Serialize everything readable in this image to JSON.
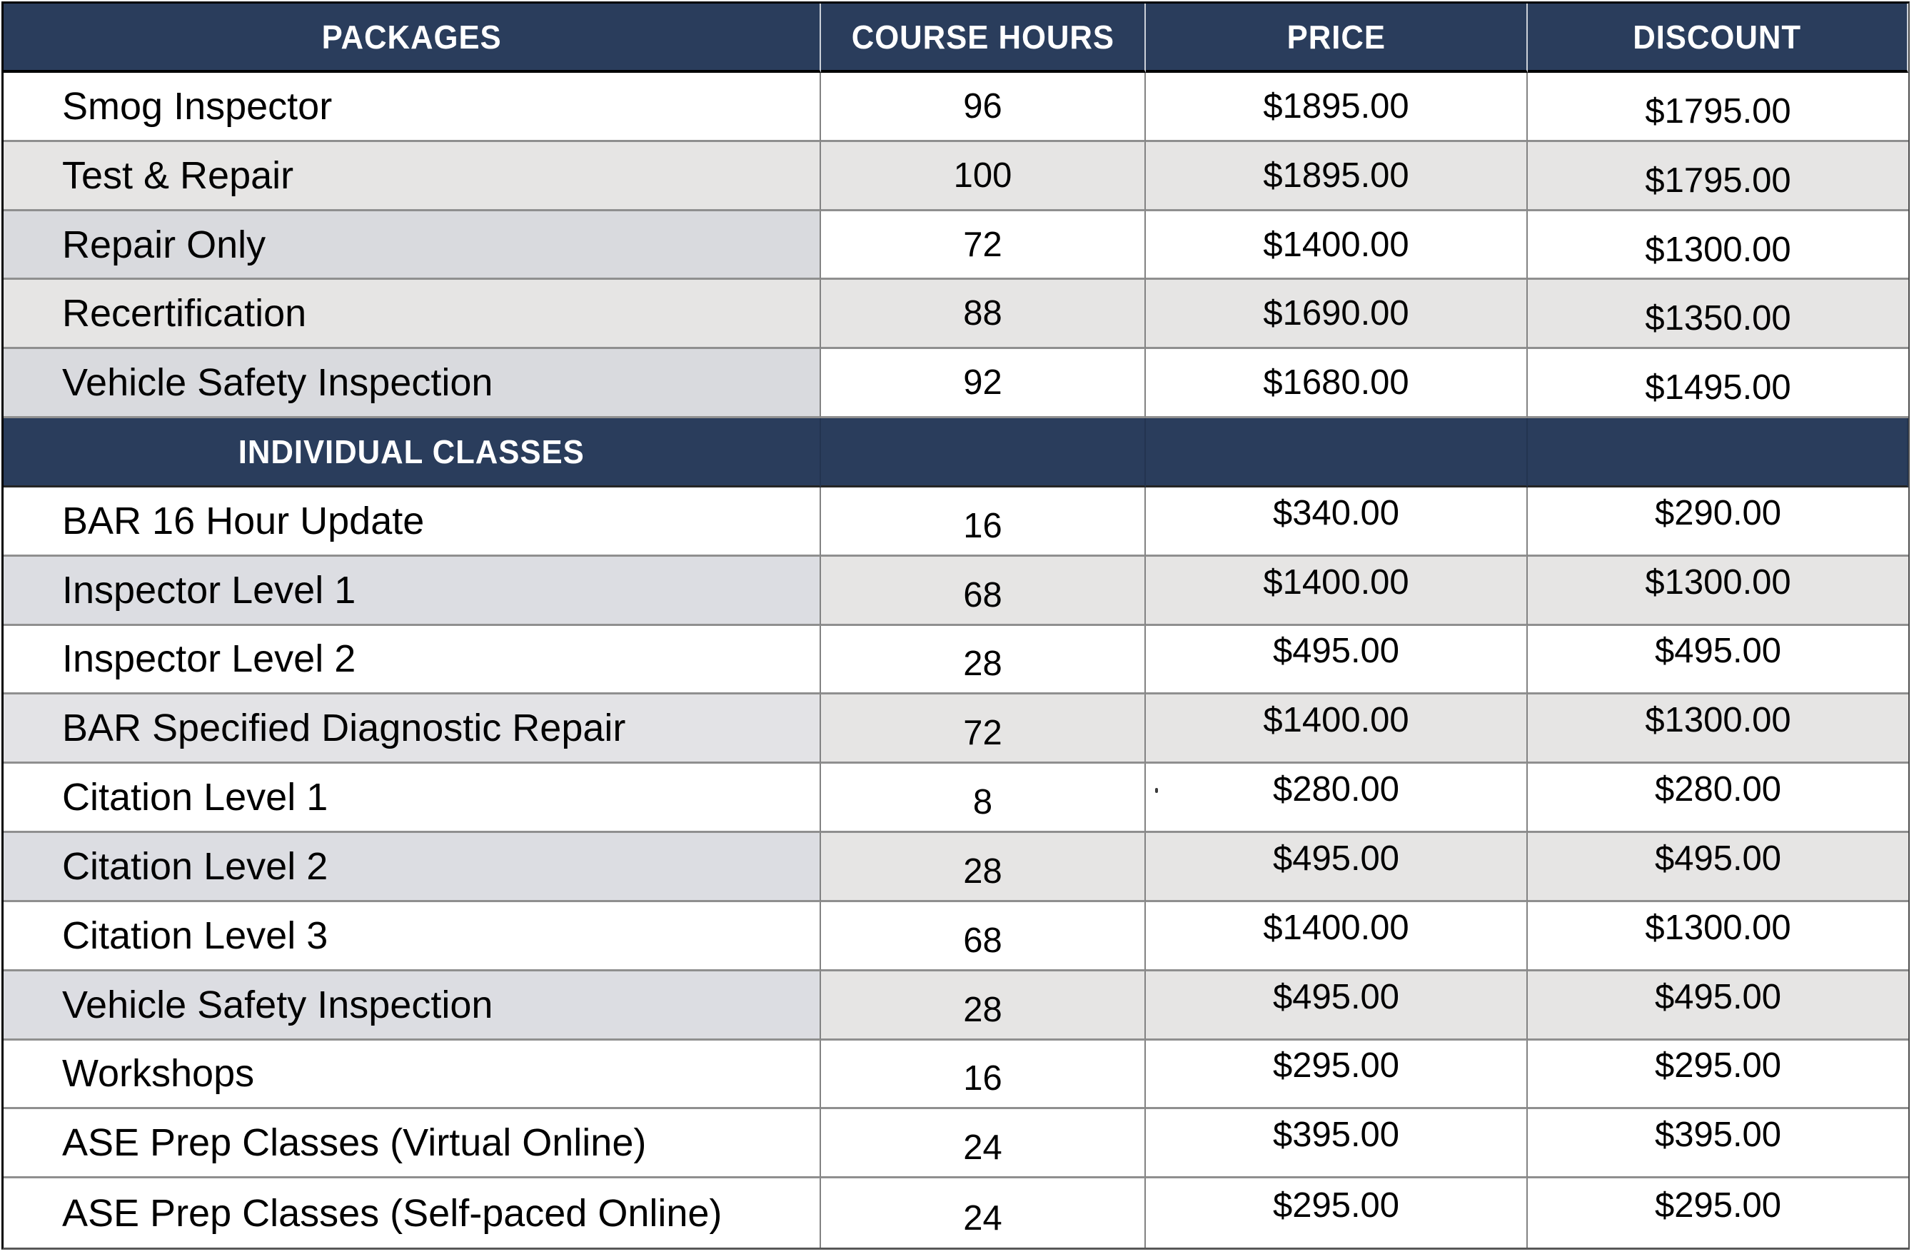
{
  "palette": {
    "header_bg": "#2a3d5c",
    "header_text": "#ffffff",
    "text": "#000000",
    "row_white": "#ffffff",
    "row_gray": "#e6e5e4",
    "row_blue": "#d9dade",
    "row_blue2": "#dcdde2",
    "row_blue3": "#e3e3e6",
    "grid_line": "#8f8f8f",
    "col_line": "#828282",
    "outer_border": "#000000"
  },
  "columns": [
    {
      "label": "PACKAGES"
    },
    {
      "label": "COURSE HOURS"
    },
    {
      "label": "PRICE"
    },
    {
      "label": "DISCOUNT"
    }
  ],
  "sections": [
    {
      "title": "PACKAGES",
      "rows": [
        {
          "package": "Smog Inspector",
          "hours": "96",
          "price": "$1895.00",
          "discount": "$1795.00"
        },
        {
          "package": "Test & Repair",
          "hours": "100",
          "price": "$1895.00",
          "discount": "$1795.00"
        },
        {
          "package": "Repair Only",
          "hours": "72",
          "price": "$1400.00",
          "discount": "$1300.00"
        },
        {
          "package": "Recertification",
          "hours": "88",
          "price": "$1690.00",
          "discount": "$1350.00"
        },
        {
          "package": "Vehicle Safety Inspection",
          "hours": "92",
          "price": "$1680.00",
          "discount": "$1495.00"
        }
      ]
    },
    {
      "title": "INDIVIDUAL CLASSES",
      "rows": [
        {
          "package": "BAR 16 Hour Update",
          "hours": "16",
          "price": "$340.00",
          "discount": "$290.00"
        },
        {
          "package": "Inspector Level 1",
          "hours": "68",
          "price": "$1400.00",
          "discount": "$1300.00"
        },
        {
          "package": "Inspector Level 2",
          "hours": "28",
          "price": "$495.00",
          "discount": "$495.00"
        },
        {
          "package": "BAR Specified Diagnostic Repair",
          "hours": "72",
          "price": "$1400.00",
          "discount": "$1300.00"
        },
        {
          "package": "Citation Level 1",
          "hours": "8",
          "price": "$280.00",
          "discount": "$280.00"
        },
        {
          "package": "Citation Level 2",
          "hours": "28",
          "price": "$495.00",
          "discount": "$495.00"
        },
        {
          "package": "Citation Level 3",
          "hours": "68",
          "price": "$1400.00",
          "discount": "$1300.00"
        },
        {
          "package": "Vehicle Safety Inspection",
          "hours": "28",
          "price": "$495.00",
          "discount": "$495.00"
        },
        {
          "package": "Workshops",
          "hours": "16",
          "price": "$295.00",
          "discount": "$295.00"
        },
        {
          "package": "ASE Prep Classes (Virtual Online)",
          "hours": "24",
          "price": "$395.00",
          "discount": "$395.00"
        },
        {
          "package": "ASE Prep Classes (Self-paced Online)",
          "hours": "24",
          "price": "$295.00",
          "discount": "$295.00"
        }
      ]
    }
  ]
}
